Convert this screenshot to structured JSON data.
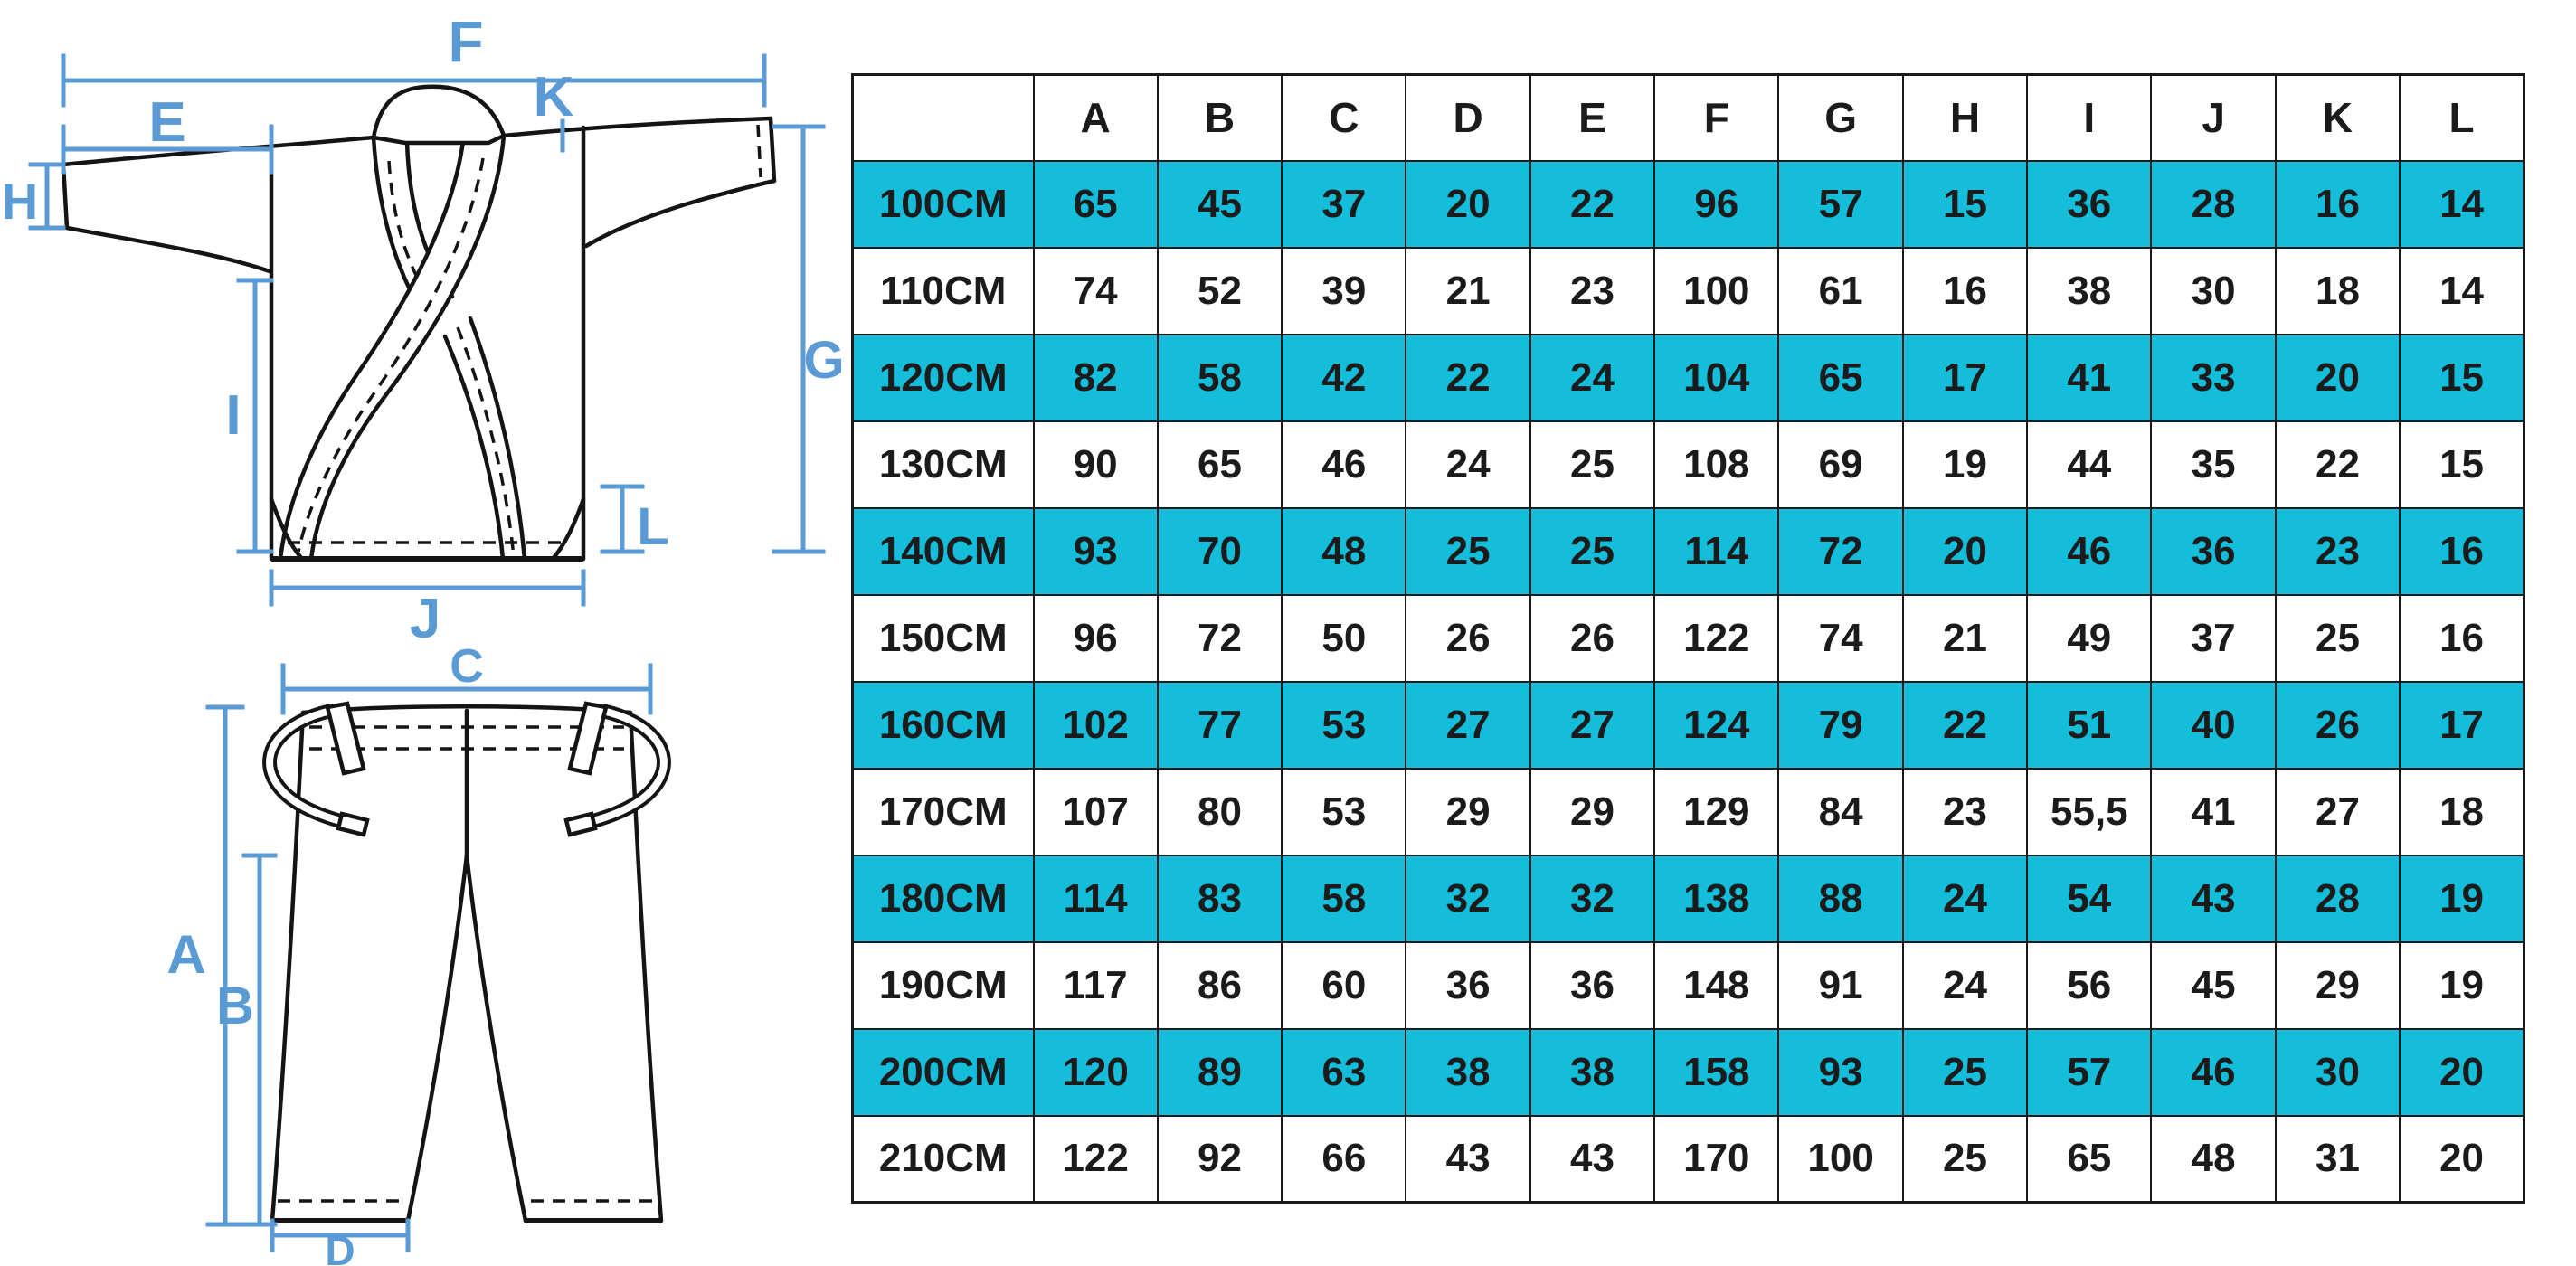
{
  "diagram": {
    "dimension_color": "#5b9bd5",
    "line_color": "#141414",
    "jacket": {
      "labels": {
        "F": "F",
        "E": "E",
        "K": "K",
        "H": "H",
        "G": "G",
        "I": "I",
        "L": "L",
        "J": "J"
      }
    },
    "pants": {
      "labels": {
        "C": "C",
        "A": "A",
        "B": "B",
        "D": "D"
      }
    }
  },
  "table": {
    "highlight_color": "#14bdda",
    "columns": [
      "A",
      "B",
      "C",
      "D",
      "E",
      "F",
      "G",
      "H",
      "I",
      "J",
      "K",
      "L"
    ],
    "rows": [
      {
        "size": "100CM",
        "highlight": true,
        "values": [
          "65",
          "45",
          "37",
          "20",
          "22",
          "96",
          "57",
          "15",
          "36",
          "28",
          "16",
          "14"
        ]
      },
      {
        "size": "110CM",
        "highlight": false,
        "values": [
          "74",
          "52",
          "39",
          "21",
          "23",
          "100",
          "61",
          "16",
          "38",
          "30",
          "18",
          "14"
        ]
      },
      {
        "size": "120CM",
        "highlight": true,
        "values": [
          "82",
          "58",
          "42",
          "22",
          "24",
          "104",
          "65",
          "17",
          "41",
          "33",
          "20",
          "15"
        ]
      },
      {
        "size": "130CM",
        "highlight": false,
        "values": [
          "90",
          "65",
          "46",
          "24",
          "25",
          "108",
          "69",
          "19",
          "44",
          "35",
          "22",
          "15"
        ]
      },
      {
        "size": "140CM",
        "highlight": true,
        "values": [
          "93",
          "70",
          "48",
          "25",
          "25",
          "114",
          "72",
          "20",
          "46",
          "36",
          "23",
          "16"
        ]
      },
      {
        "size": "150CM",
        "highlight": false,
        "values": [
          "96",
          "72",
          "50",
          "26",
          "26",
          "122",
          "74",
          "21",
          "49",
          "37",
          "25",
          "16"
        ]
      },
      {
        "size": "160CM",
        "highlight": true,
        "values": [
          "102",
          "77",
          "53",
          "27",
          "27",
          "124",
          "79",
          "22",
          "51",
          "40",
          "26",
          "17"
        ]
      },
      {
        "size": "170CM",
        "highlight": false,
        "values": [
          "107",
          "80",
          "53",
          "29",
          "29",
          "129",
          "84",
          "23",
          "55,5",
          "41",
          "27",
          "18"
        ]
      },
      {
        "size": "180CM",
        "highlight": true,
        "values": [
          "114",
          "83",
          "58",
          "32",
          "32",
          "138",
          "88",
          "24",
          "54",
          "43",
          "28",
          "19"
        ]
      },
      {
        "size": "190CM",
        "highlight": false,
        "values": [
          "117",
          "86",
          "60",
          "36",
          "36",
          "148",
          "91",
          "24",
          "56",
          "45",
          "29",
          "19"
        ]
      },
      {
        "size": "200CM",
        "highlight": true,
        "values": [
          "120",
          "89",
          "63",
          "38",
          "38",
          "158",
          "93",
          "25",
          "57",
          "46",
          "30",
          "20"
        ]
      },
      {
        "size": "210CM",
        "highlight": false,
        "values": [
          "122",
          "92",
          "66",
          "43",
          "43",
          "170",
          "100",
          "25",
          "65",
          "48",
          "31",
          "20"
        ]
      }
    ]
  }
}
